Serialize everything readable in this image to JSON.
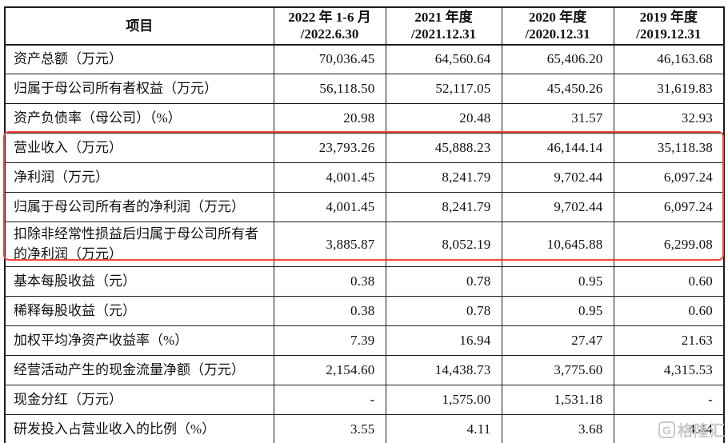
{
  "table": {
    "header": {
      "item_col": "项目",
      "period_cols": [
        {
          "line1": "2022 年 1-6 月",
          "line2": "/2022.6.30"
        },
        {
          "line1": "2021 年度",
          "line2": "/2021.12.31"
        },
        {
          "line1": "2020 年度",
          "line2": "/2020.12.31"
        },
        {
          "line1": "2019 年度",
          "line2": "/2019.12.31"
        }
      ]
    },
    "rows": [
      {
        "label": "资产总额（万元）",
        "values": [
          "70,036.45",
          "64,560.64",
          "65,406.20",
          "46,163.68"
        ],
        "highlighted": false
      },
      {
        "label": "归属于母公司所有者权益（万元）",
        "values": [
          "56,118.50",
          "52,117.05",
          "45,450.26",
          "31,619.83"
        ],
        "highlighted": false
      },
      {
        "label": "资产负债率（母公司）（%）",
        "values": [
          "20.98",
          "20.48",
          "31.57",
          "32.93"
        ],
        "highlighted": false
      },
      {
        "label": "营业收入（万元）",
        "values": [
          "23,793.26",
          "45,888.23",
          "46,144.14",
          "35,118.38"
        ],
        "highlighted": true
      },
      {
        "label": "净利润（万元）",
        "values": [
          "4,001.45",
          "8,241.79",
          "9,702.44",
          "6,097.24"
        ],
        "highlighted": true
      },
      {
        "label": "归属于母公司所有者的净利润（万元）",
        "values": [
          "4,001.45",
          "8,241.79",
          "9,702.44",
          "6,097.24"
        ],
        "highlighted": true
      },
      {
        "label": "扣除非经常性损益后归属于母公司所有者的净利润（万元）",
        "values": [
          "3,885.87",
          "8,052.19",
          "10,645.88",
          "6,299.08"
        ],
        "highlighted": true
      },
      {
        "label": "基本每股收益（元）",
        "values": [
          "0.38",
          "0.78",
          "0.95",
          "0.60"
        ],
        "highlighted": false
      },
      {
        "label": "稀释每股收益（元）",
        "values": [
          "0.38",
          "0.78",
          "0.95",
          "0.60"
        ],
        "highlighted": false
      },
      {
        "label": "加权平均净资产收益率（%）",
        "values": [
          "7.39",
          "16.94",
          "27.47",
          "21.63"
        ],
        "highlighted": false
      },
      {
        "label": "经营活动产生的现金流量净额（万元）",
        "values": [
          "2,154.60",
          "14,438.73",
          "3,775.60",
          "4,315.53"
        ],
        "highlighted": false
      },
      {
        "label": "现金分红（万元）",
        "values": [
          "-",
          "1,575.00",
          "1,531.18",
          "-"
        ],
        "highlighted": false
      },
      {
        "label": "研发投入占营业收入的比例（%）",
        "values": [
          "3.55",
          "4.11",
          "3.68",
          "4.44"
        ],
        "highlighted": false
      }
    ]
  },
  "colors": {
    "highlight_border": "#f0463c",
    "table_border": "#1c1c1c",
    "watermark_gray": "#c9c9c9"
  },
  "watermark": {
    "icon_glyph": "G",
    "text": "格隆汇"
  }
}
